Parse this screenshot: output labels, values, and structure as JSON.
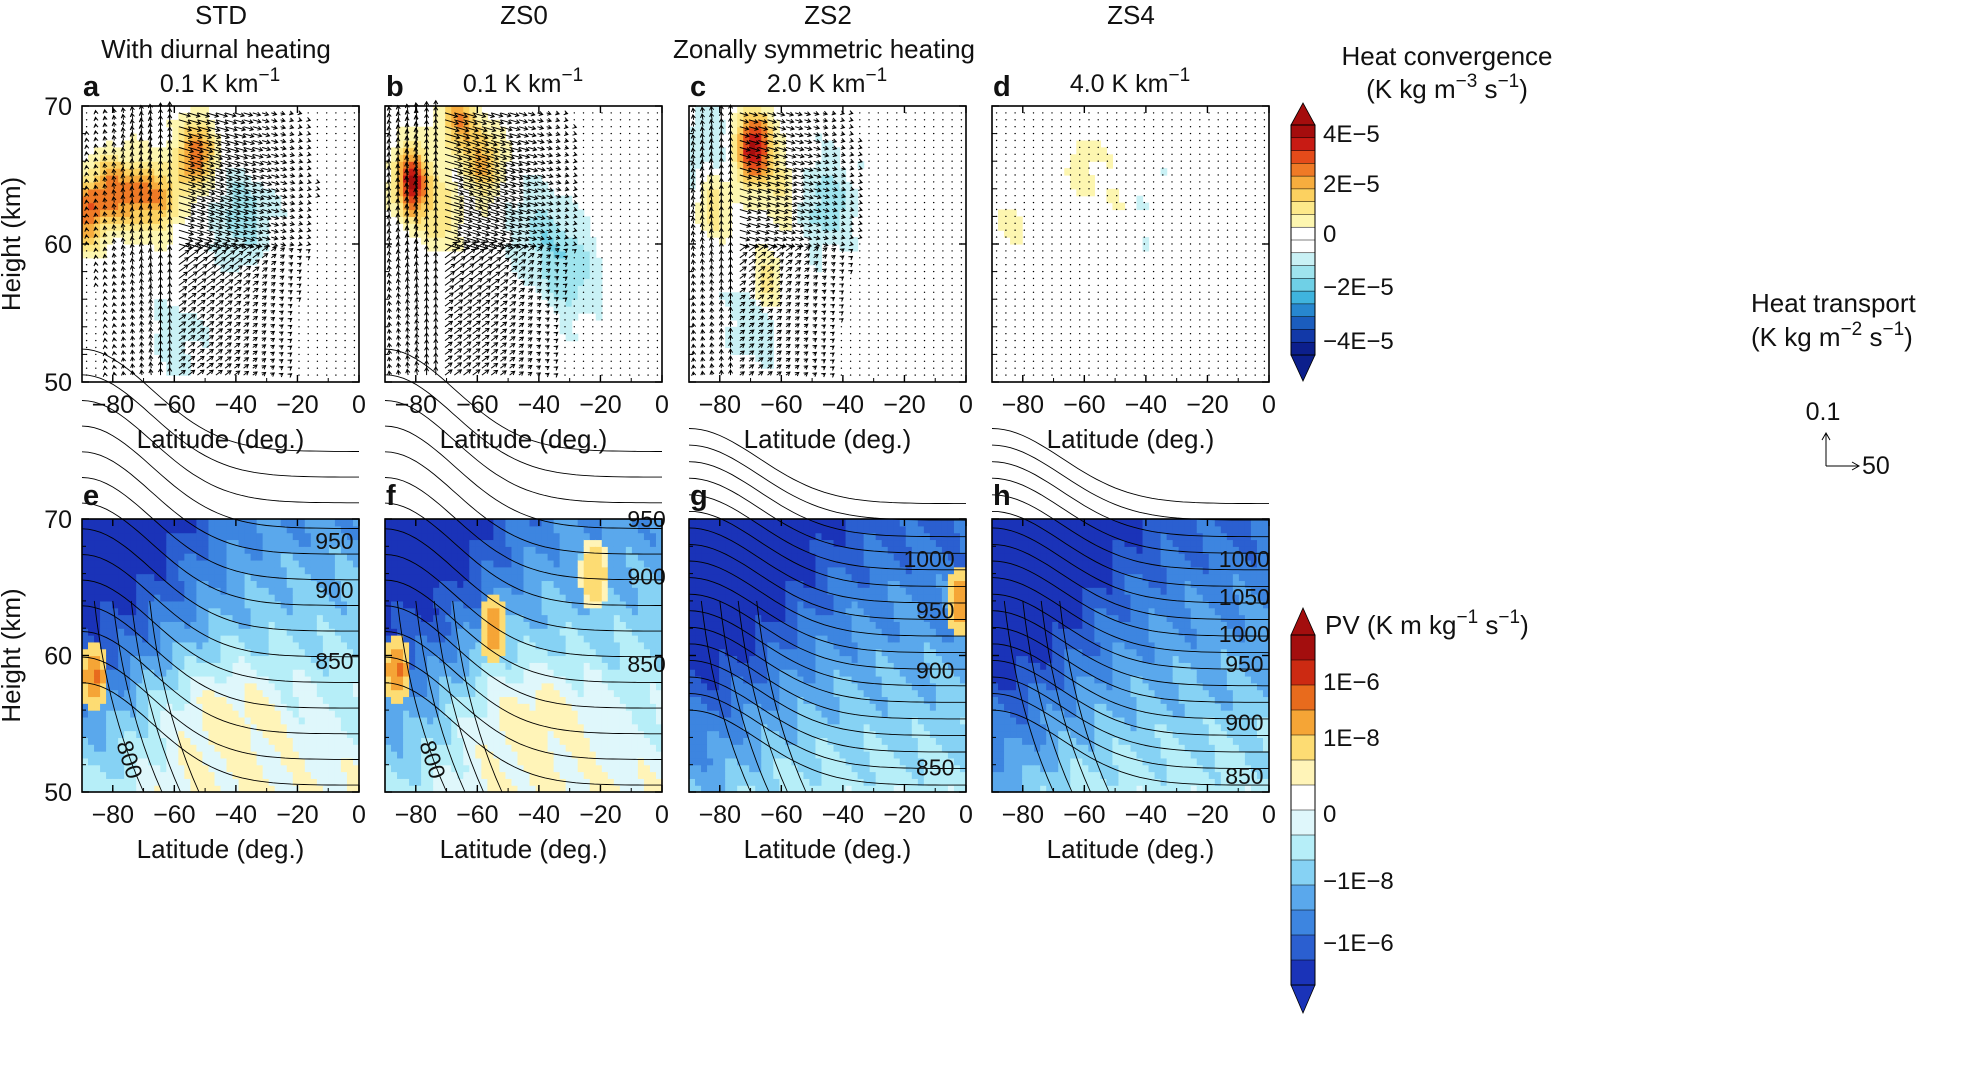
{
  "chart_data": {
    "type": "heatmap",
    "experiment_titles": [
      "STD",
      "ZS0",
      "ZS2",
      "ZS4"
    ],
    "group_labels": {
      "diurnal": "With diurnal heating",
      "zonal": "Zonally symmetric heating"
    },
    "xlabel": "Latitude (deg.)",
    "ylabel": "Height (km)",
    "xlim": [
      -90,
      0
    ],
    "ylim": [
      50,
      70
    ],
    "xticks": [
      "−80",
      "−60",
      "−40",
      "−20",
      "0"
    ],
    "yticks": [
      "50",
      "60",
      "70"
    ],
    "top_row": {
      "variable": "Heat convergence with heat transport vectors",
      "panels": [
        {
          "label": "a",
          "experiment": "STD",
          "stability": "0.1 K km",
          "stability_exp": "−1",
          "hotspots": [
            [
              -53,
              66.5,
              3.2
            ],
            [
              -80,
              64,
              2.4
            ],
            [
              -72,
              63.5,
              2.3
            ],
            [
              -64,
              63.5,
              2.1
            ],
            [
              -88,
              62,
              1.8
            ],
            [
              -88,
              63,
              1.2
            ]
          ],
          "coolspots": [
            [
              -38,
              62,
              -1.2
            ],
            [
              -60,
              53,
              -0.6
            ]
          ],
          "arrow_strength": 1.0
        },
        {
          "label": "b",
          "experiment": "ZS0",
          "stability": "0.1 K km",
          "stability_exp": "−1",
          "hotspots": [
            [
              -81,
              64.5,
              4.2
            ],
            [
              -66,
              69,
              2.4
            ],
            [
              -58,
              66,
              2.2
            ],
            [
              -72,
              62,
              1.3
            ]
          ],
          "coolspots": [
            [
              -30,
              58,
              -1.3
            ],
            [
              -40,
              61,
              -1.0
            ]
          ],
          "arrow_strength": 1.1
        },
        {
          "label": "c",
          "experiment": "ZS2",
          "stability": "2.0 K km",
          "stability_exp": "−1",
          "hotspots": [
            [
              -69,
              67,
              4.6
            ],
            [
              -82,
              63,
              1.3
            ],
            [
              -65,
              57,
              1.5
            ],
            [
              -60,
              64,
              1.0
            ]
          ],
          "coolspots": [
            [
              -45,
              63,
              -1.2
            ],
            [
              -68,
              55,
              -0.9
            ],
            [
              -85,
              67,
              -0.8
            ]
          ],
          "arrow_strength": 0.7
        },
        {
          "label": "d",
          "experiment": "ZS4",
          "stability": "4.0 K km",
          "stability_exp": "−1",
          "hotspots": [
            [
              -60,
              65.5,
              0.6
            ],
            [
              -85,
              61,
              0.5
            ],
            [
              -48,
              64,
              0.4
            ]
          ],
          "coolspots": [
            [
              -40,
              63,
              -0.3
            ]
          ],
          "arrow_strength": 0.0
        }
      ],
      "colorbar": {
        "title_line1": "Heat convergence",
        "title_line2_base": "(K kg m",
        "title_line2_exp1": "−3",
        "title_line2_mid": " s",
        "title_line2_exp2": "−1",
        "title_line2_end": ")",
        "ticks": [
          "4E−5",
          "2E−5",
          "0",
          "−2E−5",
          "−4E−5"
        ]
      },
      "vector_key": {
        "title_line1": "Heat transport",
        "title_line2_base": "(K kg m",
        "title_line2_exp1": "−2",
        "title_line2_mid": " s",
        "title_line2_exp2": "−1",
        "title_line2_end": ")",
        "vertical_ref": "0.1",
        "horizontal_ref": "50"
      }
    },
    "bottom_row": {
      "variable": "Potential vorticity with isentropes",
      "panels": [
        {
          "label": "e",
          "experiment": "STD",
          "contour_labels": [
            {
              "text": "950",
              "lat": -8,
              "h": 67.8
            },
            {
              "text": "900",
              "lat": -8,
              "h": 64.2
            },
            {
              "text": "850",
              "lat": -8,
              "h": 59.0
            },
            {
              "text": "800",
              "lat": -77,
              "h": 52.2
            }
          ],
          "pos_blobs": [
            [
              -86,
              58.5,
              1.0
            ]
          ]
        },
        {
          "label": "f",
          "experiment": "ZS0",
          "contour_labels": [
            {
              "text": "950",
              "lat": -5,
              "h": 69.4
            },
            {
              "text": "900",
              "lat": -5,
              "h": 65.2
            },
            {
              "text": "850",
              "lat": -5,
              "h": 58.8
            },
            {
              "text": "800",
              "lat": -77,
              "h": 52.2
            }
          ],
          "pos_blobs": [
            [
              -86,
              59,
              1.0
            ],
            [
              -55,
              62,
              0.9
            ],
            [
              -22,
              66,
              0.6
            ]
          ]
        },
        {
          "label": "g",
          "experiment": "ZS2",
          "contour_labels": [
            {
              "text": "1000",
              "lat": -12,
              "h": 66.5
            },
            {
              "text": "950",
              "lat": -10,
              "h": 62.7
            },
            {
              "text": "900",
              "lat": -10,
              "h": 58.3
            },
            {
              "text": "850",
              "lat": -10,
              "h": 51.2
            }
          ],
          "pos_blobs": [
            [
              -2,
              64,
              0.9
            ]
          ]
        },
        {
          "label": "h",
          "experiment": "ZS4",
          "contour_labels": [
            {
              "text": "1000",
              "lat": -8,
              "h": 66.5
            },
            {
              "text": "1050",
              "lat": -8,
              "h": 63.7
            },
            {
              "text": "1000",
              "lat": -8,
              "h": 61.0
            },
            {
              "text": "950",
              "lat": -8,
              "h": 58.8
            },
            {
              "text": "900",
              "lat": -8,
              "h": 54.5
            },
            {
              "text": "850",
              "lat": -8,
              "h": 50.6
            }
          ],
          "pos_blobs": []
        }
      ],
      "colorbar": {
        "title_base": "PV (K m kg",
        "title_exp1": "−1",
        "title_mid": " s",
        "title_exp2": "−1",
        "title_end": ")",
        "ticks": [
          "1E−6",
          "1E−8",
          "0",
          "−1E−8",
          "−1E−6"
        ]
      }
    },
    "colors": {
      "heat_pos": [
        "#fdf6b0",
        "#fde98a",
        "#fcd160",
        "#f7ad3e",
        "#ef7a26",
        "#e44b1a",
        "#c81b14",
        "#a50d0d"
      ],
      "heat_neg": [
        "#c9f1f5",
        "#9fe4ee",
        "#6fd0e6",
        "#3fb4de",
        "#2787cf",
        "#1b5dbe",
        "#1239a8",
        "#0c1f8c"
      ],
      "pv_neg": [
        "#1a33b8",
        "#2b5fd0",
        "#3d85e0",
        "#5aa8ec",
        "#86d2f4",
        "#b6eef8",
        "#dff7fb"
      ],
      "pv_pos": [
        "#fff4b8",
        "#fddc73",
        "#f5a536",
        "#e86b1d",
        "#cc2a12",
        "#a30e0e"
      ]
    }
  }
}
